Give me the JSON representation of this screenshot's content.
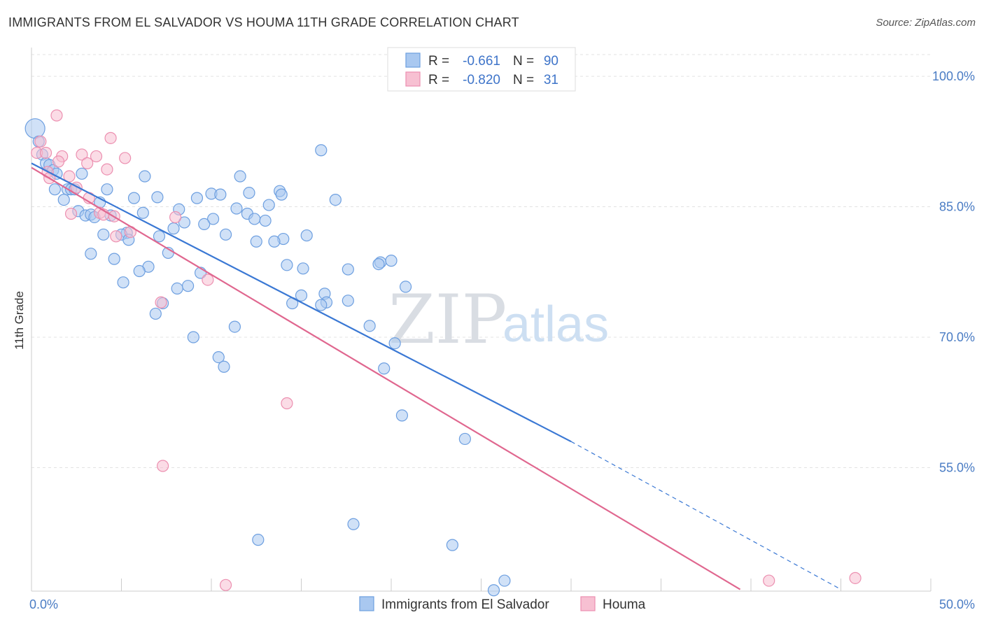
{
  "title": "IMMIGRANTS FROM EL SALVADOR VS HOUMA 11TH GRADE CORRELATION CHART",
  "source": "Source: ZipAtlas.com",
  "watermark": {
    "zip": "ZIP",
    "atlas": "atlas"
  },
  "legend": {
    "rows": [
      {
        "r_label": "R =",
        "r_value": "-0.661",
        "n_label": "N =",
        "n_value": "90",
        "color": "#a9c8f0",
        "stroke": "#6d9fe0"
      },
      {
        "r_label": "R =",
        "r_value": "-0.820",
        "n_label": "N =",
        "n_value": "31",
        "color": "#f7c0d2",
        "stroke": "#ec8fb0"
      }
    ]
  },
  "chart_data": {
    "type": "scatter",
    "title": "IMMIGRANTS FROM EL SALVADOR VS HOUMA 11TH GRADE CORRELATION CHART",
    "xlabel": "",
    "ylabel": "11th Grade",
    "xlim": [
      0,
      50
    ],
    "ylim": [
      40.8,
      102.5
    ],
    "x_ticks": [
      "0.0%",
      "50.0%"
    ],
    "y_ticks": [
      {
        "value": 100,
        "label": "100.0%"
      },
      {
        "value": 85,
        "label": "85.0%"
      },
      {
        "value": 70,
        "label": "70.0%"
      },
      {
        "value": 55,
        "label": "55.0%"
      }
    ],
    "grid": true,
    "series": [
      {
        "name": "Immigrants from El Salvador",
        "color": "#a9c8f0",
        "stroke": "#6d9fe0",
        "line_color": "#3a78d4",
        "trend": {
          "x0": 0,
          "y0": 90.0,
          "x1": 30.0,
          "y1": 58.0,
          "dash_to_x": 45.0,
          "dash_to_y": 41.0
        },
        "points": [
          [
            0.2,
            94.0,
            14
          ],
          [
            0.4,
            92.5,
            8
          ],
          [
            0.6,
            91.0,
            8
          ],
          [
            0.8,
            90.0,
            8
          ],
          [
            1.0,
            89.8,
            8
          ],
          [
            1.2,
            89.2,
            8
          ],
          [
            1.4,
            88.8,
            8
          ],
          [
            2.8,
            88.8,
            8
          ],
          [
            6.3,
            88.5,
            8
          ],
          [
            11.6,
            88.5,
            8
          ],
          [
            16.1,
            91.5,
            8
          ],
          [
            1.3,
            87.0,
            8
          ],
          [
            2.0,
            87.0,
            8
          ],
          [
            2.2,
            87.0,
            8
          ],
          [
            2.4,
            87.0,
            8
          ],
          [
            4.2,
            87.0,
            8
          ],
          [
            12.1,
            86.6,
            8
          ],
          [
            13.8,
            86.8,
            8
          ],
          [
            13.9,
            86.4,
            8
          ],
          [
            10.0,
            86.5,
            8
          ],
          [
            10.5,
            86.4,
            8
          ],
          [
            7.0,
            86.1,
            8
          ],
          [
            9.2,
            86.0,
            8
          ],
          [
            16.9,
            85.8,
            8
          ],
          [
            5.7,
            86.0,
            8
          ],
          [
            1.8,
            85.8,
            8
          ],
          [
            3.8,
            85.5,
            8
          ],
          [
            8.2,
            84.7,
            8
          ],
          [
            11.4,
            84.8,
            8
          ],
          [
            13.2,
            85.2,
            8
          ],
          [
            2.6,
            84.5,
            8
          ],
          [
            6.2,
            84.3,
            8
          ],
          [
            12.0,
            84.2,
            8
          ],
          [
            3.0,
            84.0,
            8
          ],
          [
            3.3,
            84.1,
            8
          ],
          [
            4.4,
            84.0,
            8
          ],
          [
            3.5,
            83.8,
            8
          ],
          [
            12.4,
            83.6,
            8
          ],
          [
            10.1,
            83.6,
            8
          ],
          [
            13.0,
            83.4,
            8
          ],
          [
            8.5,
            83.2,
            8
          ],
          [
            9.6,
            83.0,
            8
          ],
          [
            7.9,
            82.5,
            8
          ],
          [
            5.3,
            82.0,
            8
          ],
          [
            4.0,
            81.8,
            8
          ],
          [
            5.0,
            81.8,
            8
          ],
          [
            7.1,
            81.6,
            8
          ],
          [
            10.8,
            81.8,
            8
          ],
          [
            15.3,
            81.7,
            8
          ],
          [
            14.0,
            81.3,
            8
          ],
          [
            12.5,
            81.0,
            8
          ],
          [
            13.5,
            81.0,
            8
          ],
          [
            5.4,
            81.2,
            8
          ],
          [
            3.3,
            79.6,
            8
          ],
          [
            7.6,
            79.7,
            8
          ],
          [
            4.6,
            79.0,
            8
          ],
          [
            14.2,
            78.3,
            8
          ],
          [
            19.4,
            78.6,
            8
          ],
          [
            19.3,
            78.4,
            8
          ],
          [
            20.0,
            78.8,
            8
          ],
          [
            6.5,
            78.1,
            8
          ],
          [
            15.1,
            77.9,
            8
          ],
          [
            17.6,
            77.8,
            8
          ],
          [
            6.0,
            77.6,
            8
          ],
          [
            9.4,
            77.4,
            8
          ],
          [
            5.1,
            76.3,
            8
          ],
          [
            20.8,
            75.8,
            8
          ],
          [
            8.7,
            75.9,
            8
          ],
          [
            8.1,
            75.6,
            8
          ],
          [
            16.3,
            75.0,
            8
          ],
          [
            15.0,
            74.8,
            8
          ],
          [
            17.6,
            74.2,
            8
          ],
          [
            16.4,
            74.0,
            8
          ],
          [
            14.5,
            73.9,
            8
          ],
          [
            16.1,
            73.7,
            8
          ],
          [
            7.3,
            73.9,
            8
          ],
          [
            6.9,
            72.7,
            8
          ],
          [
            18.8,
            71.3,
            8
          ],
          [
            11.3,
            71.2,
            8
          ],
          [
            9.0,
            70.0,
            8
          ],
          [
            20.2,
            69.3,
            8
          ],
          [
            10.4,
            67.7,
            8
          ],
          [
            10.7,
            66.6,
            8
          ],
          [
            19.6,
            66.4,
            8
          ],
          [
            20.6,
            61.0,
            8
          ],
          [
            24.1,
            58.3,
            8
          ],
          [
            17.9,
            48.5,
            8
          ],
          [
            12.6,
            46.7,
            8
          ],
          [
            23.4,
            46.1,
            8
          ],
          [
            26.3,
            42.0,
            8
          ],
          [
            25.7,
            40.9,
            8
          ]
        ]
      },
      {
        "name": "Houma",
        "color": "#f7c0d2",
        "stroke": "#ec8fb0",
        "line_color": "#e0678f",
        "trend": {
          "x0": 0,
          "y0": 89.5,
          "x1": 39.4,
          "y1": 41.0
        },
        "points": [
          [
            1.4,
            95.5,
            8
          ],
          [
            0.5,
            92.5,
            8
          ],
          [
            0.3,
            91.2,
            8
          ],
          [
            0.8,
            91.2,
            8
          ],
          [
            4.4,
            92.9,
            8
          ],
          [
            1.7,
            90.8,
            8
          ],
          [
            2.8,
            91.0,
            8
          ],
          [
            3.6,
            90.8,
            8
          ],
          [
            5.2,
            90.6,
            8
          ],
          [
            1.5,
            90.2,
            8
          ],
          [
            3.1,
            90.0,
            8
          ],
          [
            4.2,
            89.3,
            8
          ],
          [
            0.9,
            89.0,
            8
          ],
          [
            2.1,
            88.5,
            8
          ],
          [
            1.0,
            88.3,
            8
          ],
          [
            2.5,
            87.2,
            8
          ],
          [
            3.2,
            86.0,
            8
          ],
          [
            3.8,
            84.3,
            8
          ],
          [
            2.2,
            84.2,
            8
          ],
          [
            4.0,
            84.1,
            8
          ],
          [
            8.0,
            83.8,
            8
          ],
          [
            5.5,
            82.1,
            8
          ],
          [
            4.7,
            81.6,
            8
          ],
          [
            9.8,
            76.6,
            8
          ],
          [
            7.2,
            74.0,
            8
          ],
          [
            14.2,
            62.4,
            8
          ],
          [
            7.3,
            55.2,
            8
          ],
          [
            10.8,
            41.5,
            8
          ],
          [
            41.0,
            42.0,
            8
          ],
          [
            45.8,
            42.3,
            8
          ],
          [
            4.6,
            83.9,
            8
          ]
        ]
      }
    ]
  },
  "bottom_legend": [
    {
      "label": "Immigrants from El Salvador",
      "color": "#a9c8f0",
      "stroke": "#6d9fe0"
    },
    {
      "label": "Houma",
      "color": "#f7c0d2",
      "stroke": "#ec8fb0"
    }
  ]
}
